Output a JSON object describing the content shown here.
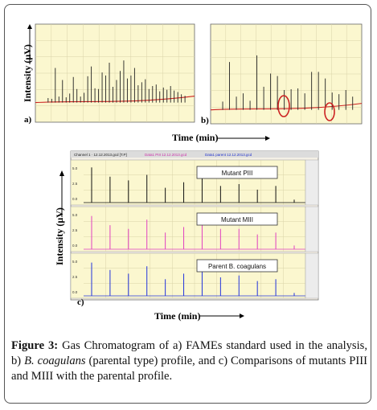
{
  "figure": {
    "caption_label": "Figure 3:",
    "caption_text": "Gas Chromatogram of a) FAMEs standard used in the analysis, b) ",
    "caption_italic": "B. coagulans",
    "caption_tail": " (parental type) profile, and c) Comparisons of mutants PIII and MIII with the parental profile."
  },
  "chart_data": [
    {
      "type": "line",
      "panel_label": "a)",
      "ylabel": "Intensity (µV)",
      "xlabel": "Time (min)",
      "description_color": "#cc2222",
      "series": [
        {
          "values": [
            0.06,
            0.05,
            0.46,
            0.08,
            0.3,
            0.07,
            0.12,
            0.34,
            0.18,
            0.08,
            0.13,
            0.35,
            0.48,
            0.19,
            0.18,
            0.4,
            0.36,
            0.53,
            0.21,
            0.3,
            0.42,
            0.56,
            0.32,
            0.36,
            0.46,
            0.23,
            0.27,
            0.31,
            0.18,
            0.22,
            0.24,
            0.15,
            0.2,
            0.17,
            0.22,
            0.16,
            0.14,
            0.11,
            0.09
          ]
        }
      ]
    },
    {
      "type": "line",
      "panel_label": "b)",
      "series": [
        {
          "values": [
            0.1,
            0.58,
            0.16,
            0.2,
            0.11,
            0.66,
            0.28,
            0.44,
            0.41,
            0.24,
            0.25,
            0.26,
            0.2,
            0.46,
            0.46,
            0.38,
            0.21,
            0.19,
            0.24,
            0.16
          ]
        }
      ]
    },
    {
      "type": "line",
      "panel_label": "c)",
      "ylabel": "Intensity (µV)",
      "xlabel": "Time (min)",
      "yticks": [
        "5.0",
        "2.5",
        "0.0"
      ],
      "series": [
        {
          "name": "Mutant PIII",
          "color": "#111111",
          "values": [
            0.95,
            0.7,
            0.6,
            0.75,
            0.4,
            0.55,
            0.95,
            0.45,
            0.5,
            0.35,
            0.45,
            0.08
          ]
        },
        {
          "name": "Mutant MIII",
          "color": "#e040c0",
          "values": [
            0.9,
            0.65,
            0.55,
            0.8,
            0.45,
            0.6,
            0.95,
            0.55,
            0.55,
            0.4,
            0.45,
            0.1
          ]
        },
        {
          "name": "Parent B. coagulans",
          "color": "#2233dd",
          "values": [
            0.9,
            0.7,
            0.6,
            0.8,
            0.45,
            0.6,
            0.95,
            0.5,
            0.55,
            0.4,
            0.45,
            0.08
          ]
        }
      ]
    }
  ]
}
